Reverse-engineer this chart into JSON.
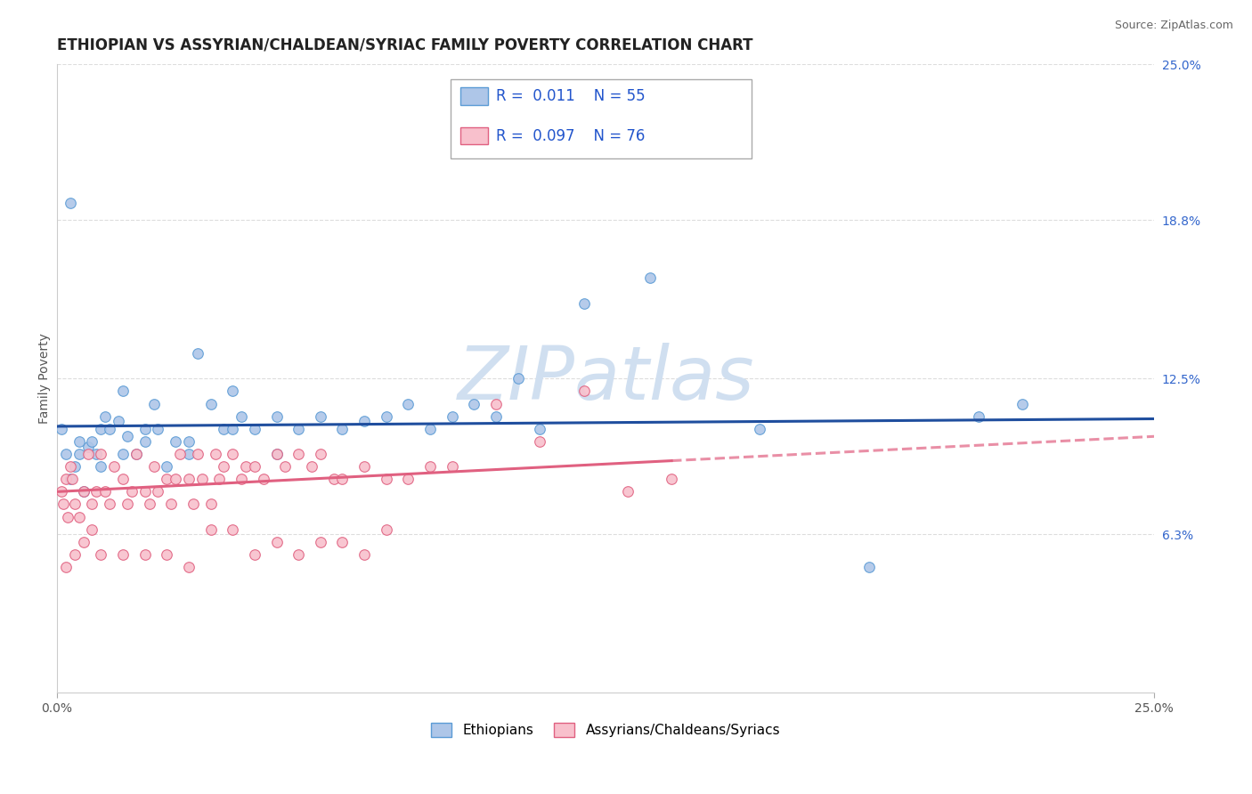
{
  "title": "ETHIOPIAN VS ASSYRIAN/CHALDEAN/SYRIAC FAMILY POVERTY CORRELATION CHART",
  "source": "Source: ZipAtlas.com",
  "ylabel": "Family Poverty",
  "right_yticks": [
    6.3,
    12.5,
    18.8,
    25.0
  ],
  "right_yticklabels": [
    "6.3%",
    "12.5%",
    "18.8%",
    "25.0%"
  ],
  "xlim": [
    0.0,
    25.0
  ],
  "ylim": [
    0.0,
    25.0
  ],
  "watermark": "ZIPatlas",
  "series": [
    {
      "name": "Ethiopians",
      "color": "#aec6e8",
      "border_color": "#5b9bd5",
      "R": 0.011,
      "N": 55,
      "trend_color": "#1f4e9e",
      "trend_style": "-",
      "x": [
        0.1,
        0.2,
        0.3,
        0.4,
        0.5,
        0.6,
        0.7,
        0.8,
        0.9,
        1.0,
        1.1,
        1.2,
        1.4,
        1.5,
        1.6,
        1.8,
        2.0,
        2.2,
        2.3,
        2.5,
        2.7,
        3.0,
        3.2,
        3.5,
        3.8,
        4.0,
        4.2,
        4.5,
        5.0,
        5.5,
        6.0,
        6.5,
        7.0,
        7.5,
        8.0,
        8.5,
        9.0,
        9.5,
        10.0,
        10.5,
        11.0,
        12.0,
        13.5,
        16.0,
        18.5,
        21.0,
        22.0,
        0.3,
        0.5,
        1.0,
        1.5,
        2.0,
        3.0,
        4.0,
        5.0
      ],
      "y": [
        10.5,
        9.5,
        8.5,
        9.0,
        9.5,
        8.0,
        9.8,
        10.0,
        9.5,
        10.5,
        11.0,
        10.5,
        10.8,
        12.0,
        10.2,
        9.5,
        10.0,
        11.5,
        10.5,
        9.0,
        10.0,
        9.5,
        13.5,
        11.5,
        10.5,
        12.0,
        11.0,
        10.5,
        11.0,
        10.5,
        11.0,
        10.5,
        10.8,
        11.0,
        11.5,
        10.5,
        11.0,
        11.5,
        11.0,
        12.5,
        10.5,
        15.5,
        16.5,
        10.5,
        5.0,
        11.0,
        11.5,
        19.5,
        10.0,
        9.0,
        9.5,
        10.5,
        10.0,
        10.5,
        9.5
      ]
    },
    {
      "name": "Assyrians/Chaldeans/Syriacs",
      "color": "#f8c0cc",
      "border_color": "#e06080",
      "R": 0.097,
      "N": 76,
      "trend_color": "#e06080",
      "trend_style": "-",
      "trend_dash_start": 14.0,
      "x": [
        0.1,
        0.15,
        0.2,
        0.25,
        0.3,
        0.35,
        0.4,
        0.5,
        0.6,
        0.7,
        0.8,
        0.9,
        1.0,
        1.1,
        1.2,
        1.3,
        1.5,
        1.6,
        1.7,
        1.8,
        2.0,
        2.1,
        2.2,
        2.3,
        2.5,
        2.6,
        2.7,
        2.8,
        3.0,
        3.1,
        3.2,
        3.3,
        3.5,
        3.6,
        3.7,
        3.8,
        4.0,
        4.2,
        4.3,
        4.5,
        4.7,
        5.0,
        5.2,
        5.5,
        5.8,
        6.0,
        6.3,
        6.5,
        7.0,
        7.5,
        8.0,
        8.5,
        9.0,
        10.0,
        11.0,
        12.0,
        13.0,
        14.0,
        0.2,
        0.4,
        0.6,
        0.8,
        1.0,
        1.5,
        2.0,
        2.5,
        3.0,
        3.5,
        4.0,
        4.5,
        5.0,
        5.5,
        6.0,
        6.5,
        7.0,
        7.5
      ],
      "y": [
        8.0,
        7.5,
        8.5,
        7.0,
        9.0,
        8.5,
        7.5,
        7.0,
        8.0,
        9.5,
        7.5,
        8.0,
        9.5,
        8.0,
        7.5,
        9.0,
        8.5,
        7.5,
        8.0,
        9.5,
        8.0,
        7.5,
        9.0,
        8.0,
        8.5,
        7.5,
        8.5,
        9.5,
        8.5,
        7.5,
        9.5,
        8.5,
        7.5,
        9.5,
        8.5,
        9.0,
        9.5,
        8.5,
        9.0,
        9.0,
        8.5,
        9.5,
        9.0,
        9.5,
        9.0,
        9.5,
        8.5,
        8.5,
        9.0,
        8.5,
        8.5,
        9.0,
        9.0,
        11.5,
        10.0,
        12.0,
        8.0,
        8.5,
        5.0,
        5.5,
        6.0,
        6.5,
        5.5,
        5.5,
        5.5,
        5.5,
        5.0,
        6.5,
        6.5,
        5.5,
        6.0,
        5.5,
        6.0,
        6.0,
        5.5,
        6.5
      ]
    }
  ],
  "legend_box_color": "#ffffff",
  "legend_border_color": "#aaaaaa",
  "R_N_color": "#2255cc",
  "grid_color": "#dddddd",
  "background_color": "#ffffff",
  "title_fontsize": 12,
  "axis_label_fontsize": 10,
  "tick_fontsize": 10,
  "watermark_color": "#d0dff0",
  "watermark_fontsize": 60,
  "blue_trend_y": 10.6,
  "pink_trend_start_y": 8.0,
  "pink_trend_end_y": 10.2
}
